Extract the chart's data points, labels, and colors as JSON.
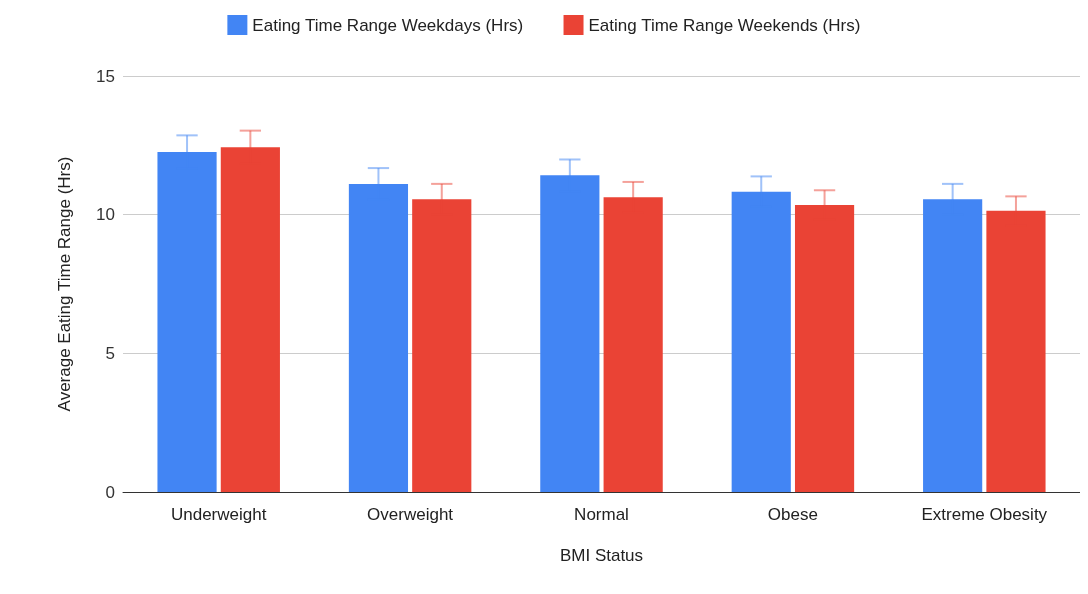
{
  "chart_data": {
    "type": "bar",
    "xlabel": "BMI Status",
    "ylabel": "Average Eating Time Range (Hrs)",
    "categories": [
      "Underweight",
      "Overweight",
      "Normal",
      "Obese",
      "Extreme Obesity"
    ],
    "series": [
      {
        "name": "Eating Time Range Weekdays (Hrs)",
        "color": "#4285f4",
        "values": [
          12.26,
          11.11,
          11.42,
          10.83,
          10.56
        ],
        "errors": [
          0.6,
          0.57,
          0.57,
          0.55,
          0.55
        ]
      },
      {
        "name": "Eating Time Range Weekends (Hrs)",
        "color": "#ea4335",
        "values": [
          12.43,
          10.56,
          10.63,
          10.35,
          10.14
        ],
        "errors": [
          0.6,
          0.55,
          0.55,
          0.53,
          0.52
        ]
      }
    ],
    "ylim": [
      0,
      15
    ],
    "yticks": [
      0,
      5,
      10,
      15
    ],
    "grid": "y",
    "legend": "top"
  }
}
